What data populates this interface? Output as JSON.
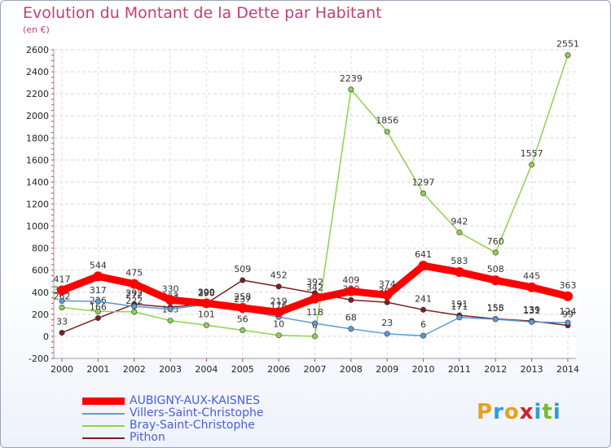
{
  "chart_data": {
    "type": "line",
    "title": "Evolution du Montant de la Dette par Habitant",
    "subtitle": "(en €)",
    "x": [
      "2000",
      "2001",
      "2002",
      "2003",
      "2004",
      "2005",
      "2006",
      "2007",
      "2008",
      "2009",
      "2010",
      "2011",
      "2012",
      "2013",
      "2014"
    ],
    "ylim": [
      -200,
      2600
    ],
    "yticks": [
      -200,
      0,
      200,
      400,
      600,
      800,
      1000,
      1200,
      1400,
      1600,
      1800,
      2000,
      2200,
      2400,
      2600
    ],
    "grid": true,
    "legend_position": "bottom-left",
    "series": [
      {
        "name": "AUBIGNY-AUX-KAISNES",
        "color": "#ff0000",
        "values": [
          417,
          544,
          475,
          330,
          300,
          258,
          219,
          342,
          409,
          374,
          641,
          583,
          508,
          445,
          363
        ]
      },
      {
        "name": "Villers-Saint-Christophe",
        "color": "#5b9bd5",
        "values": [
          322,
          317,
          272,
          246,
          290,
          237,
          176,
          118,
          68,
          23,
          6,
          171,
          155,
          131,
          124
        ]
      },
      {
        "name": "Bray-Saint-Christophe",
        "color": "#8fd14f",
        "values": [
          262,
          226,
          222,
          143,
          101,
          56,
          10,
          0,
          2239,
          1856,
          1297,
          942,
          760,
          1557,
          2551
        ]
      },
      {
        "name": "Pithon",
        "color": "#7b2020",
        "values": [
          33,
          166,
          292,
          263,
          299,
          509,
          452,
          392,
          330,
          309,
          241,
          191,
          158,
          139,
          99
        ]
      }
    ]
  },
  "logo": {
    "text": "Proxiti",
    "letters": [
      "P",
      "r",
      "o",
      "x",
      "i",
      "t",
      "i"
    ],
    "colors": [
      "#e8a020",
      "#2e9bd6",
      "#e8a020",
      "#d0202a",
      "#2e9bd6",
      "#7ab82e",
      "#2e9bd6"
    ]
  }
}
